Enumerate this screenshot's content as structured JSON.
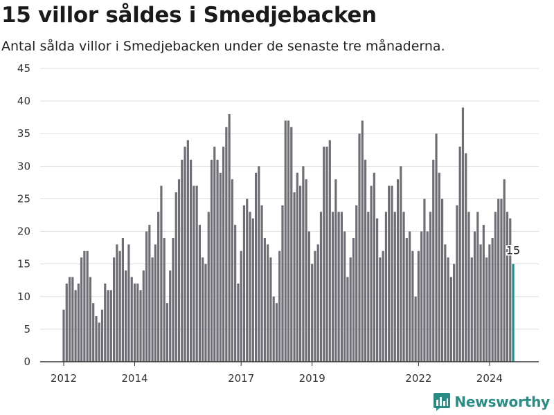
{
  "header": {
    "title": "15 villor såldes i Smedjebacken",
    "subtitle": "Antal sålda villor i Smedjebacken under de senaste tre månaderna."
  },
  "brand": {
    "name": "Newsworthy",
    "icon": "bar-chart-logo-icon",
    "color": "#2a8c83"
  },
  "colors": {
    "bar": "#6f6e75",
    "highlight": "#1e9088",
    "grid": "#dddddd",
    "axis": "#333333"
  },
  "chart_data": {
    "type": "bar",
    "title": "15 villor såldes i Smedjebacken",
    "subtitle": "Antal sålda villor i Smedjebacken under de senaste tre månaderna.",
    "xlabel": "",
    "ylabel": "",
    "ylim": [
      0,
      45
    ],
    "y_ticks": [
      "0",
      "5",
      "10",
      "15",
      "20",
      "25",
      "30",
      "35",
      "40",
      "45"
    ],
    "x_ticks": [
      "2012",
      "2014",
      "2017",
      "2019",
      "2022",
      "2024"
    ],
    "x_tick_indices": [
      0,
      24,
      60,
      84,
      120,
      144
    ],
    "grid": true,
    "legend": "none",
    "start_period": "2012-01",
    "frequency": "monthly",
    "values": [
      8,
      12,
      13,
      13,
      11,
      12,
      16,
      17,
      17,
      13,
      9,
      7,
      6,
      8,
      12,
      11,
      11,
      16,
      18,
      17,
      19,
      14,
      18,
      13,
      12,
      12,
      11,
      14,
      20,
      21,
      16,
      18,
      23,
      27,
      19,
      9,
      14,
      19,
      26,
      28,
      31,
      33,
      34,
      31,
      27,
      27,
      21,
      16,
      15,
      23,
      31,
      33,
      31,
      29,
      33,
      36,
      38,
      28,
      21,
      12,
      17,
      24,
      25,
      23,
      22,
      29,
      30,
      24,
      19,
      18,
      16,
      10,
      9,
      17,
      24,
      37,
      37,
      36,
      26,
      29,
      27,
      30,
      28,
      20,
      15,
      17,
      18,
      23,
      33,
      33,
      34,
      23,
      28,
      23,
      23,
      20,
      13,
      16,
      19,
      24,
      35,
      37,
      31,
      23,
      27,
      29,
      22,
      16,
      17,
      23,
      27,
      27,
      23,
      28,
      30,
      23,
      19,
      20,
      17,
      10,
      17,
      20,
      25,
      20,
      23,
      31,
      35,
      29,
      25,
      18,
      16,
      13,
      15,
      24,
      33,
      39,
      32,
      23,
      16,
      20,
      23,
      18,
      21,
      16,
      18,
      19,
      23,
      25,
      25,
      28,
      23,
      22,
      15
    ],
    "highlight_last": true,
    "annotations": [
      {
        "label": "15",
        "index": 152
      }
    ]
  }
}
